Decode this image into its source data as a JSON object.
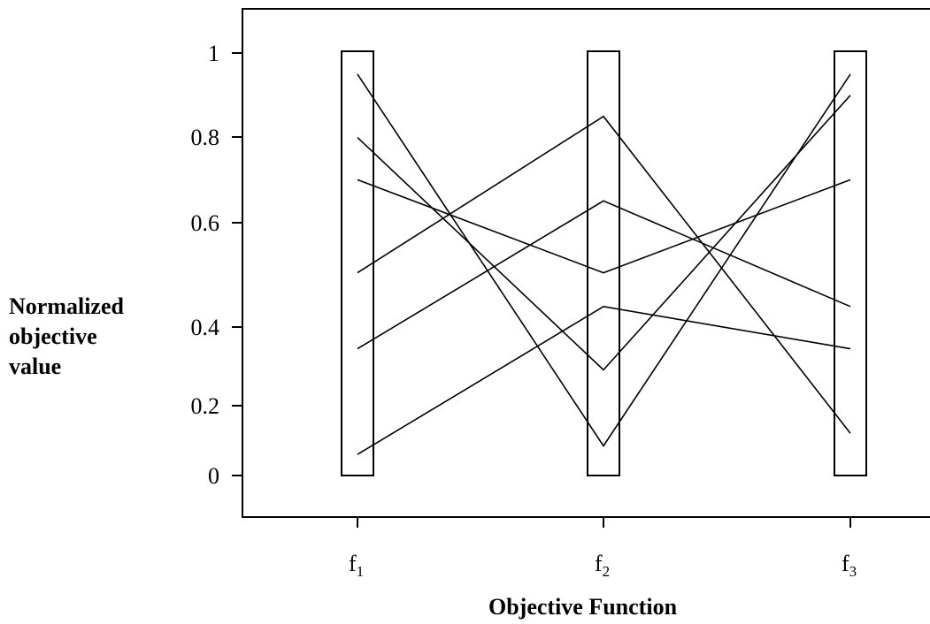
{
  "chart_data": {
    "type": "line",
    "subtype": "parallel-coordinates",
    "xlabel": "Objective Function",
    "ylabel_lines": [
      "Normalized",
      "objective",
      "value"
    ],
    "axes": [
      {
        "base": "f",
        "sub": "1"
      },
      {
        "base": "f",
        "sub": "2"
      },
      {
        "base": "f",
        "sub": "3"
      }
    ],
    "y_ticks": [
      {
        "label": "1",
        "value": 1.0
      },
      {
        "label": "0.8",
        "value": 0.8
      },
      {
        "label": "0.6",
        "value": 0.6
      },
      {
        "label": "0.4",
        "value": 0.4
      },
      {
        "label": "0.2",
        "value": 0.2
      },
      {
        "label": "0",
        "value": 0.0
      }
    ],
    "series": [
      {
        "values": [
          0.95,
          0.07,
          0.95
        ]
      },
      {
        "values": [
          0.8,
          0.25,
          0.9
        ]
      },
      {
        "values": [
          0.7,
          0.48,
          0.7
        ]
      },
      {
        "values": [
          0.48,
          0.85,
          0.1
        ]
      },
      {
        "values": [
          0.3,
          0.65,
          0.4
        ]
      },
      {
        "values": [
          0.05,
          0.4,
          0.3
        ]
      }
    ],
    "grid": false,
    "legend": "none"
  }
}
